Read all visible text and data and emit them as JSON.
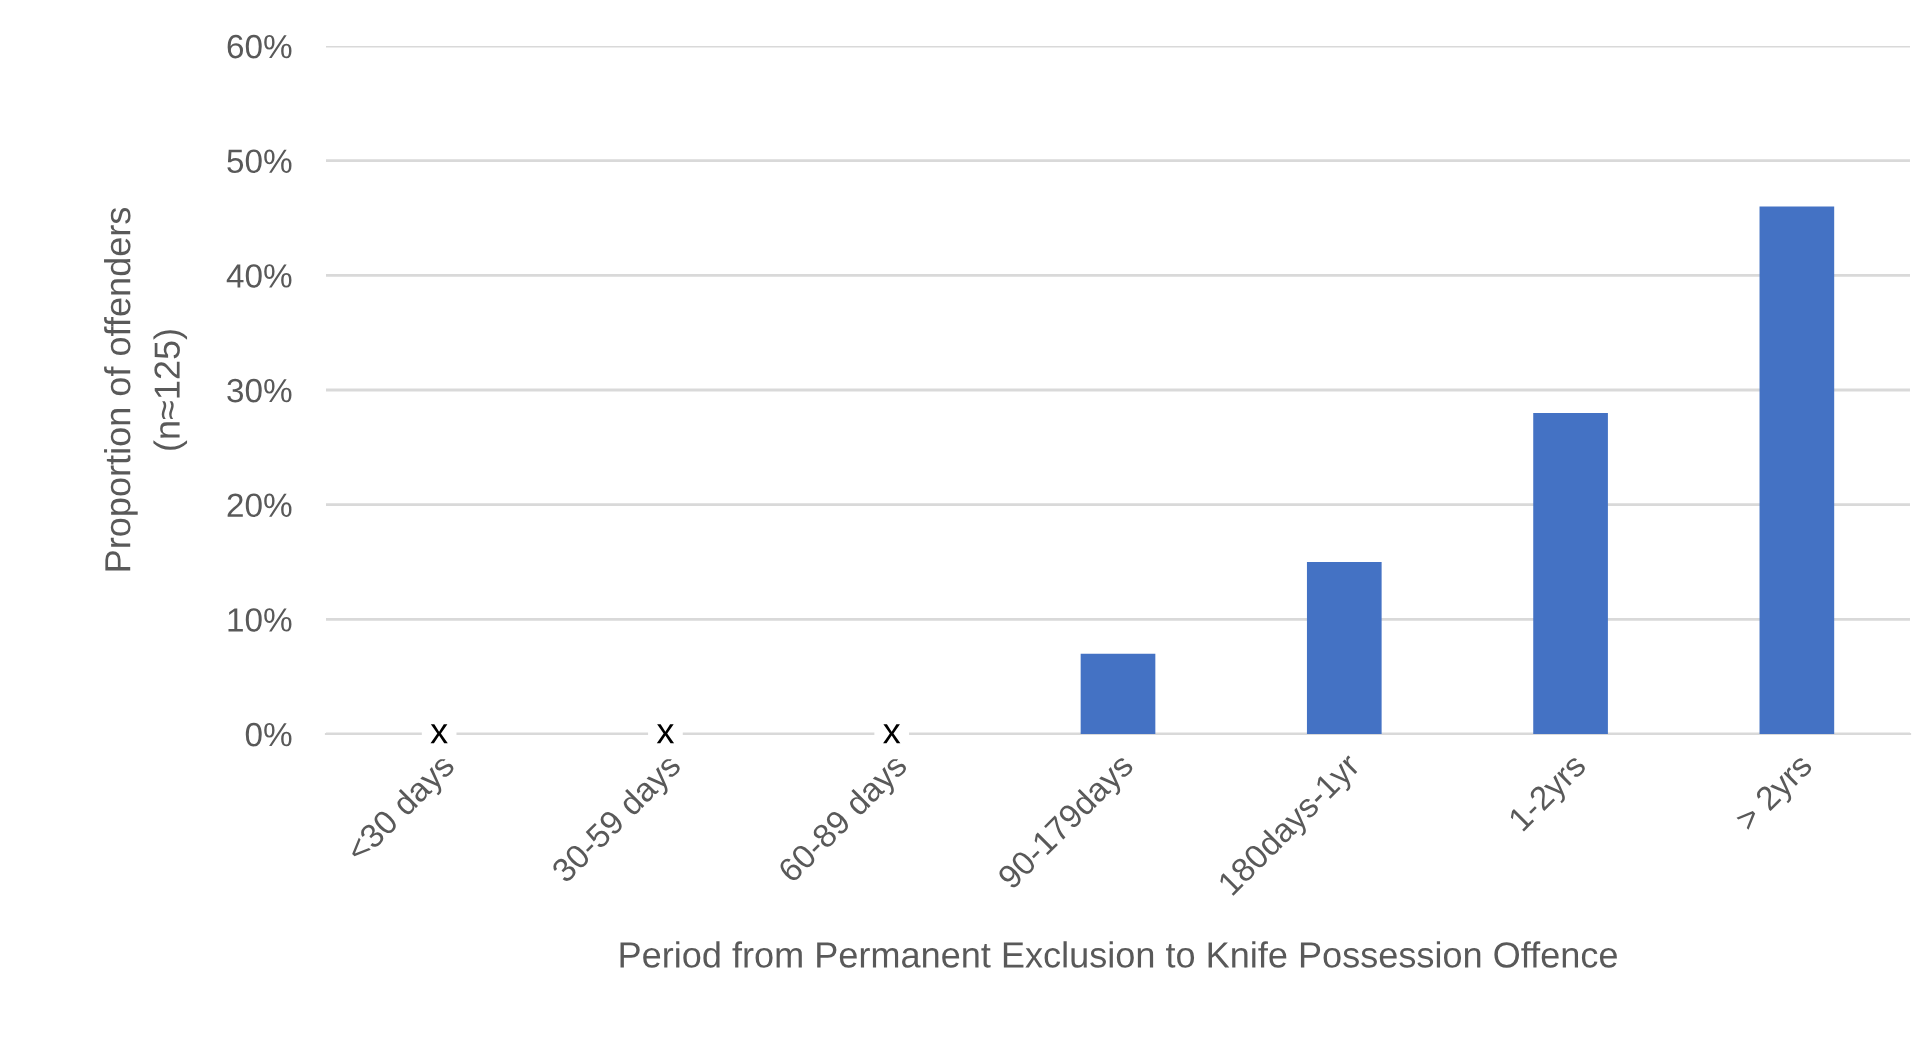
{
  "chart_data": {
    "type": "bar",
    "xlabel": "Period from Permanent Exclusion to Knife Possession Offence",
    "ylabel": "Proportion of offenders\n(n≈125)",
    "categories": [
      "<30 days",
      "30-59 days",
      "60-89 days",
      "90-179days",
      "180days-1yr",
      "1-2yrs",
      "> 2yrs"
    ],
    "values": [
      null,
      null,
      null,
      7,
      15,
      28,
      46
    ],
    "color": "#4472c4",
    "ylim": [
      0,
      60
    ],
    "yticks": [
      {
        "value": 0,
        "label": "0%"
      },
      {
        "value": 10,
        "label": "10%"
      },
      {
        "value": 20,
        "label": "20%"
      },
      {
        "value": 30,
        "label": "30%"
      },
      {
        "value": 40,
        "label": "40%"
      },
      {
        "value": 50,
        "label": "50%"
      },
      {
        "value": 60,
        "label": "60%"
      }
    ],
    "grid": "y",
    "legend": false,
    "value_labels": [
      "x",
      "x",
      "x",
      null,
      null,
      null,
      null
    ]
  }
}
